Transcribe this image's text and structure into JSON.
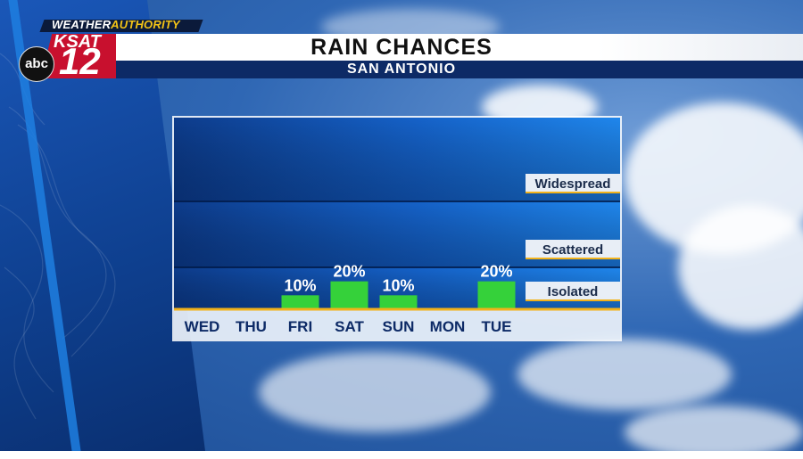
{
  "branding": {
    "network_prefix": "WEATHER",
    "network_highlight": "AUTHORITY",
    "station": "KSAT",
    "channel": "12",
    "affiliate": "abc"
  },
  "header": {
    "title": "RAIN CHANCES",
    "subtitle": "SAN ANTONIO"
  },
  "colors": {
    "bar": "#35d13a",
    "axis_line": "#f2b21a",
    "level_label_bg": "#e8eef6",
    "title_bar": "#ffffff",
    "subtitle_bar": "#0d2a66"
  },
  "chart_data": {
    "type": "bar",
    "title": "RAIN CHANCES",
    "categories": [
      "WED",
      "THU",
      "FRI",
      "SAT",
      "SUN",
      "MON",
      "TUE"
    ],
    "values": [
      0,
      0,
      10,
      20,
      10,
      0,
      20
    ],
    "data_labels": [
      "",
      "",
      "10%",
      "20%",
      "10%",
      "",
      "20%"
    ],
    "ylim": [
      0,
      100
    ],
    "bands": [
      {
        "label": "Isolated",
        "from": 0,
        "to": 30
      },
      {
        "label": "Scattered",
        "from": 30,
        "to": 70
      },
      {
        "label": "Widespread",
        "from": 70,
        "to": 100
      }
    ],
    "grid": true
  }
}
